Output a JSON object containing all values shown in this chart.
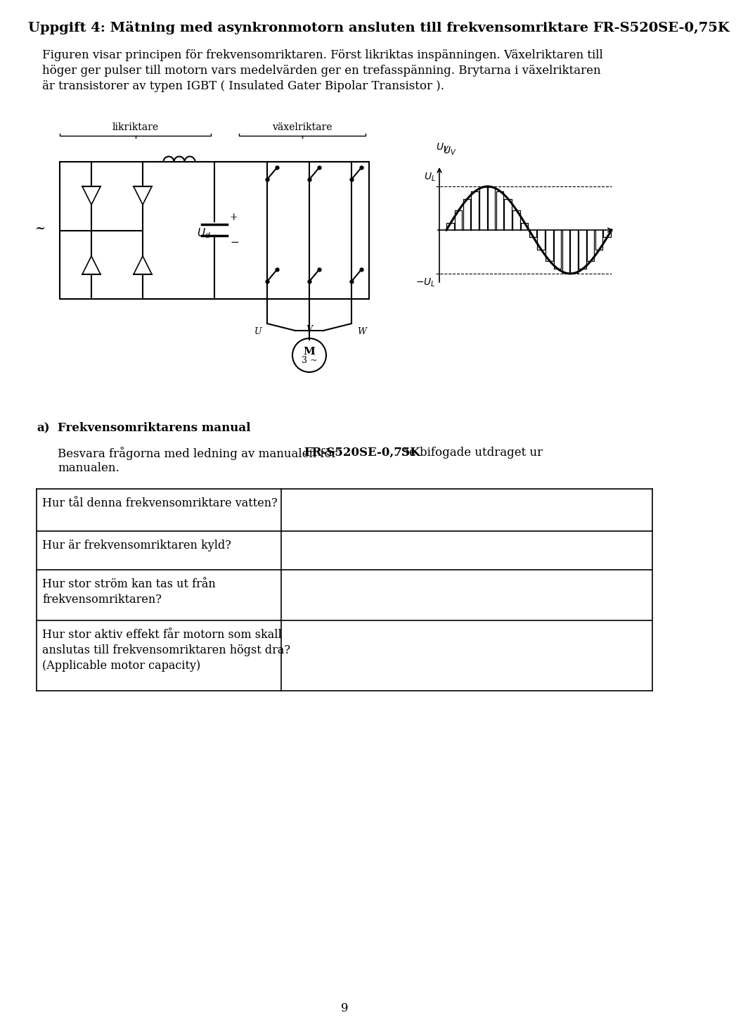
{
  "title": "Uppgift 4: Mätning med asynkronmotorn ansluten till frekvensomriktare FR-S520SE-0,75K",
  "para1": "Figuren visar principen för frekvensomriktaren. Först likriktas inspänningen. Växelriktaren till",
  "para2": "höger ger pulser till motorn vars medelvvärden ger en trefasspänning. Brytarna i växelriktaren",
  "para3": "är transistorer av typen IGBT ( Insulated Gater Bipolar Transistor ).",
  "label_likriktare": "likriktare",
  "label_vaxelriktare": "växelriktare",
  "label_Ud": "$U_d$",
  "label_UV": "$U_V$",
  "label_UL": "$U_L$",
  "label_negUL": "$-U_L$",
  "label_tilde": "~",
  "label_M": "M",
  "label_3tilde": "3 ~",
  "label_U": "U",
  "label_V": "V",
  "label_W": "W",
  "sec_a_label": "a)",
  "sec_a_title": "Frekvensomriktarens manual",
  "sec_a_text1": "Besvara frågorna med ledning av manualen för ",
  "sec_a_bold": "FR-S520SE-0,75K",
  "sec_a_text2": ". Se bifogade utdraget ur",
  "sec_a_text3": "manualen.",
  "table_q1": "Hur tål denna frekvensomriktare vatten?",
  "table_q2": "Hur är frekvensomriktaren kyld?",
  "table_q3a": "Hur stor ström kan tas ut från",
  "table_q3b": "frekvensomriktaren?",
  "table_q4a": "Hur stor aktiv effekt får motorn som skall",
  "table_q4b": "anslutas till frekvensomriktaren högst dra?",
  "table_q4c": "(Applicable motor capacity)",
  "page_num": "9",
  "bg": "#ffffff"
}
